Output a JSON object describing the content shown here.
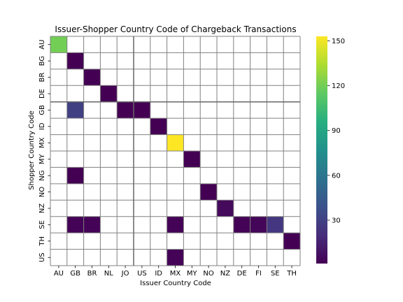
{
  "chart_data": {
    "type": "heatmap",
    "title": "Issuer-Shopper Country Code of Chargeback Transactions",
    "xlabel": "Issuer Country Code",
    "ylabel": "Shopper Country Code",
    "x_categories": [
      "AU",
      "GB",
      "BR",
      "NL",
      "JO",
      "US",
      "ID",
      "MX",
      "MY",
      "NO",
      "NZ",
      "DE",
      "FI",
      "SE",
      "TH"
    ],
    "y_categories": [
      "AU",
      "BG",
      "BR",
      "DE",
      "GB",
      "ID",
      "MX",
      "MY",
      "NG",
      "NO",
      "NZ",
      "SE",
      "TH",
      "US"
    ],
    "cells": [
      {
        "x": "AU",
        "y": "AU",
        "value": 120
      },
      {
        "x": "GB",
        "y": "BG",
        "value": 1
      },
      {
        "x": "BR",
        "y": "BR",
        "value": 1
      },
      {
        "x": "NL",
        "y": "DE",
        "value": 1
      },
      {
        "x": "GB",
        "y": "GB",
        "value": 30
      },
      {
        "x": "JO",
        "y": "GB",
        "value": 1
      },
      {
        "x": "US",
        "y": "GB",
        "value": 1
      },
      {
        "x": "ID",
        "y": "ID",
        "value": 1
      },
      {
        "x": "MX",
        "y": "MX",
        "value": 153
      },
      {
        "x": "MY",
        "y": "MY",
        "value": 1
      },
      {
        "x": "GB",
        "y": "NG",
        "value": 1
      },
      {
        "x": "NO",
        "y": "NO",
        "value": 1
      },
      {
        "x": "NZ",
        "y": "NZ",
        "value": 5
      },
      {
        "x": "GB",
        "y": "SE",
        "value": 2
      },
      {
        "x": "BR",
        "y": "SE",
        "value": 2
      },
      {
        "x": "MX",
        "y": "SE",
        "value": 2
      },
      {
        "x": "DE",
        "y": "SE",
        "value": 2
      },
      {
        "x": "FI",
        "y": "SE",
        "value": 3
      },
      {
        "x": "SE",
        "y": "SE",
        "value": 25
      },
      {
        "x": "TH",
        "y": "TH",
        "value": 1
      },
      {
        "x": "MX",
        "y": "US",
        "value": 2
      }
    ],
    "colorbar": {
      "colormap": "viridis",
      "min": 1,
      "max": 153,
      "ticks": [
        30,
        60,
        90,
        120,
        150
      ]
    },
    "grid": true,
    "separator_after_x": "JO",
    "separator_after_y": "DE"
  }
}
